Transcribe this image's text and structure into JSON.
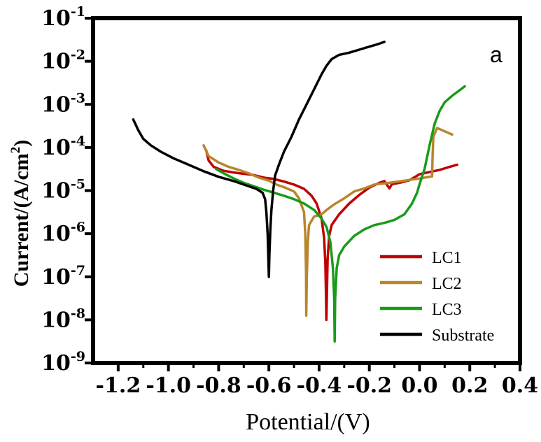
{
  "chart_data": {
    "type": "line",
    "title": "",
    "panel_label": "a",
    "xlabel": "Potential/(V)",
    "ylabel": {
      "main": "Current/(A/cm",
      "sup": "2",
      "close": ")"
    },
    "xlim": [
      -1.3,
      0.4
    ],
    "ylim_log10": [
      -9,
      -1
    ],
    "y_scale": "log",
    "x_ticks": [
      -1.2,
      -1.0,
      -0.8,
      -0.6,
      -0.4,
      -0.2,
      0.0,
      0.2,
      0.4
    ],
    "x_tick_labels": [
      "-1.2",
      "-1.0",
      "-0.8",
      "-0.6",
      "-0.4",
      "-0.2",
      "0.0",
      "0.2",
      "0.4"
    ],
    "y_tick_exponents": [
      -9,
      -8,
      -7,
      -6,
      -5,
      -4,
      -3,
      -2,
      -1
    ],
    "y_tick_base": "10",
    "legend_position": "bottom-right",
    "series": [
      {
        "name": "LC1",
        "color": "#c00000",
        "points": [
          [
            -0.85,
            -4.06
          ],
          [
            -0.84,
            -4.3
          ],
          [
            -0.82,
            -4.45
          ],
          [
            -0.78,
            -4.54
          ],
          [
            -0.74,
            -4.58
          ],
          [
            -0.7,
            -4.61
          ],
          [
            -0.66,
            -4.64
          ],
          [
            -0.62,
            -4.7
          ],
          [
            -0.58,
            -4.73
          ],
          [
            -0.54,
            -4.79
          ],
          [
            -0.5,
            -4.86
          ],
          [
            -0.46,
            -4.96
          ],
          [
            -0.43,
            -5.12
          ],
          [
            -0.41,
            -5.3
          ],
          [
            -0.39,
            -5.65
          ],
          [
            -0.38,
            -6.1
          ],
          [
            -0.375,
            -6.7
          ],
          [
            -0.372,
            -7.6
          ],
          [
            -0.371,
            -8.0
          ],
          [
            -0.369,
            -7.4
          ],
          [
            -0.366,
            -6.6
          ],
          [
            -0.36,
            -6.05
          ],
          [
            -0.35,
            -5.8
          ],
          [
            -0.32,
            -5.55
          ],
          [
            -0.28,
            -5.3
          ],
          [
            -0.24,
            -5.1
          ],
          [
            -0.2,
            -4.93
          ],
          [
            -0.16,
            -4.82
          ],
          [
            -0.14,
            -4.78
          ],
          [
            -0.12,
            -4.95
          ],
          [
            -0.11,
            -4.85
          ],
          [
            -0.08,
            -4.82
          ],
          [
            -0.04,
            -4.76
          ],
          [
            0.0,
            -4.62
          ],
          [
            0.04,
            -4.57
          ],
          [
            0.08,
            -4.52
          ],
          [
            0.12,
            -4.45
          ],
          [
            0.15,
            -4.4
          ]
        ]
      },
      {
        "name": "LC2",
        "color": "#b8862b",
        "points": [
          [
            -0.86,
            -3.95
          ],
          [
            -0.84,
            -4.2
          ],
          [
            -0.8,
            -4.35
          ],
          [
            -0.76,
            -4.45
          ],
          [
            -0.72,
            -4.52
          ],
          [
            -0.68,
            -4.6
          ],
          [
            -0.64,
            -4.7
          ],
          [
            -0.6,
            -4.77
          ],
          [
            -0.57,
            -4.86
          ],
          [
            -0.54,
            -4.92
          ],
          [
            -0.5,
            -5.02
          ],
          [
            -0.48,
            -5.18
          ],
          [
            -0.46,
            -5.5
          ],
          [
            -0.455,
            -6.0
          ],
          [
            -0.452,
            -6.9
          ],
          [
            -0.451,
            -7.9
          ],
          [
            -0.449,
            -7.0
          ],
          [
            -0.445,
            -6.2
          ],
          [
            -0.44,
            -5.8
          ],
          [
            -0.42,
            -5.6
          ],
          [
            -0.39,
            -5.55
          ],
          [
            -0.37,
            -5.45
          ],
          [
            -0.34,
            -5.32
          ],
          [
            -0.3,
            -5.18
          ],
          [
            -0.26,
            -5.02
          ],
          [
            -0.22,
            -4.95
          ],
          [
            -0.18,
            -4.86
          ],
          [
            -0.12,
            -4.82
          ],
          [
            -0.06,
            -4.77
          ],
          [
            0.0,
            -4.72
          ],
          [
            0.04,
            -4.68
          ],
          [
            0.05,
            -4.67
          ],
          [
            0.052,
            -4.2
          ],
          [
            0.055,
            -3.75
          ],
          [
            0.07,
            -3.55
          ],
          [
            0.09,
            -3.6
          ],
          [
            0.11,
            -3.65
          ],
          [
            0.13,
            -3.7
          ]
        ]
      },
      {
        "name": "LC3",
        "color": "#1a9a1a",
        "points": [
          [
            -0.81,
            -4.5
          ],
          [
            -0.78,
            -4.6
          ],
          [
            -0.74,
            -4.72
          ],
          [
            -0.7,
            -4.82
          ],
          [
            -0.66,
            -4.9
          ],
          [
            -0.62,
            -4.98
          ],
          [
            -0.58,
            -5.05
          ],
          [
            -0.54,
            -5.12
          ],
          [
            -0.5,
            -5.2
          ],
          [
            -0.46,
            -5.3
          ],
          [
            -0.42,
            -5.45
          ],
          [
            -0.39,
            -5.65
          ],
          [
            -0.37,
            -5.85
          ],
          [
            -0.355,
            -6.2
          ],
          [
            -0.345,
            -6.8
          ],
          [
            -0.34,
            -7.5
          ],
          [
            -0.338,
            -8.5
          ],
          [
            -0.336,
            -7.5
          ],
          [
            -0.33,
            -6.8
          ],
          [
            -0.32,
            -6.5
          ],
          [
            -0.3,
            -6.3
          ],
          [
            -0.26,
            -6.05
          ],
          [
            -0.22,
            -5.9
          ],
          [
            -0.18,
            -5.8
          ],
          [
            -0.14,
            -5.75
          ],
          [
            -0.1,
            -5.68
          ],
          [
            -0.06,
            -5.55
          ],
          [
            -0.03,
            -5.3
          ],
          [
            -0.01,
            -5.05
          ],
          [
            0.0,
            -4.85
          ],
          [
            0.02,
            -4.5
          ],
          [
            0.04,
            -3.95
          ],
          [
            0.06,
            -3.45
          ],
          [
            0.08,
            -3.15
          ],
          [
            0.1,
            -2.95
          ],
          [
            0.13,
            -2.8
          ],
          [
            0.16,
            -2.67
          ],
          [
            0.18,
            -2.58
          ]
        ]
      },
      {
        "name": "Substrate",
        "color": "#000000",
        "points": [
          [
            -1.14,
            -3.35
          ],
          [
            -1.12,
            -3.6
          ],
          [
            -1.1,
            -3.8
          ],
          [
            -1.07,
            -3.95
          ],
          [
            -1.03,
            -4.1
          ],
          [
            -0.98,
            -4.25
          ],
          [
            -0.92,
            -4.4
          ],
          [
            -0.86,
            -4.55
          ],
          [
            -0.8,
            -4.68
          ],
          [
            -0.74,
            -4.78
          ],
          [
            -0.69,
            -4.88
          ],
          [
            -0.65,
            -4.96
          ],
          [
            -0.625,
            -5.05
          ],
          [
            -0.615,
            -5.2
          ],
          [
            -0.61,
            -5.5
          ],
          [
            -0.605,
            -6.0
          ],
          [
            -0.602,
            -6.6
          ],
          [
            -0.6,
            -7.0
          ],
          [
            -0.598,
            -6.5
          ],
          [
            -0.594,
            -5.9
          ],
          [
            -0.59,
            -5.45
          ],
          [
            -0.583,
            -5.0
          ],
          [
            -0.575,
            -4.65
          ],
          [
            -0.56,
            -4.4
          ],
          [
            -0.54,
            -4.1
          ],
          [
            -0.51,
            -3.75
          ],
          [
            -0.48,
            -3.35
          ],
          [
            -0.45,
            -3.0
          ],
          [
            -0.42,
            -2.65
          ],
          [
            -0.39,
            -2.3
          ],
          [
            -0.37,
            -2.1
          ],
          [
            -0.35,
            -1.95
          ],
          [
            -0.32,
            -1.85
          ],
          [
            -0.28,
            -1.8
          ],
          [
            -0.24,
            -1.73
          ],
          [
            -0.2,
            -1.66
          ],
          [
            -0.17,
            -1.61
          ],
          [
            -0.14,
            -1.55
          ]
        ]
      }
    ]
  }
}
